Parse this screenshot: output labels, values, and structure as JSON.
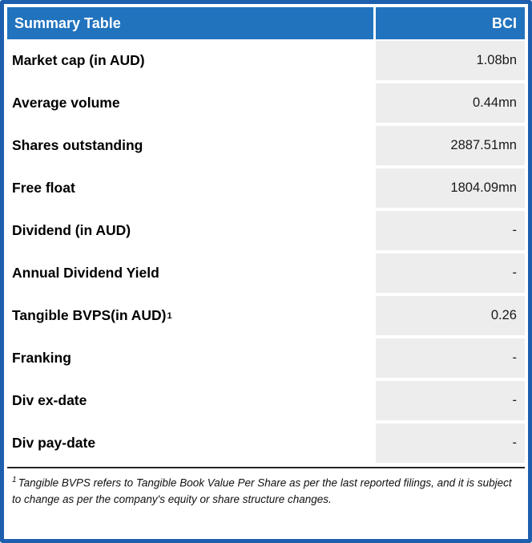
{
  "table": {
    "title": "Summary Table",
    "column_header": "BCI",
    "rows": [
      {
        "label": "Market cap (in AUD)",
        "value": "1.08bn"
      },
      {
        "label": "Average volume",
        "value": "0.44mn"
      },
      {
        "label": "Shares outstanding",
        "value": "2887.51mn"
      },
      {
        "label": "Free float",
        "value": "1804.09mn"
      },
      {
        "label": "Dividend (in AUD)",
        "value": "-"
      },
      {
        "label": "Annual Dividend Yield",
        "value": "-"
      },
      {
        "label": "Tangible BVPS(in AUD)",
        "sup": "1",
        "value": "0.26"
      },
      {
        "label": "Franking",
        "value": "-"
      },
      {
        "label": "Div ex-date",
        "value": "-"
      },
      {
        "label": "Div pay-date",
        "value": "-"
      }
    ],
    "footnote_marker": "1",
    "footnote_text": "Tangible BVPS refers to Tangible Book Value Per Share as per the last reported filings, and it is subject to change as per the company's equity or share structure changes.",
    "colors": {
      "header_bg": "#2173BE",
      "border": "#1D5FAE",
      "value_cell_bg": "#EDEDED"
    }
  }
}
